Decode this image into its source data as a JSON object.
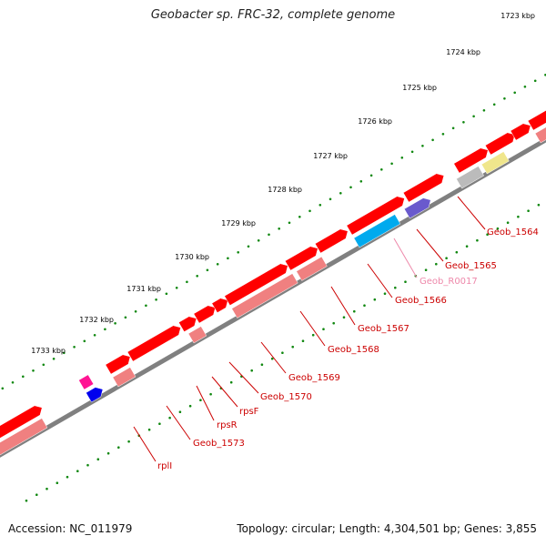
{
  "title": "Geobacter sp. FRC-32, complete genome",
  "footer": {
    "accession": "Accession: NC_011979",
    "summary": "Topology: circular; Length: 4,304,501 bp; Genes: 3,855"
  },
  "colors": {
    "backbone": "#808080",
    "tick": "#118811",
    "cds": "#ff0000",
    "cds_light": "#f08080",
    "gene_label": "#cc0000",
    "rna_label": "#ee88aa",
    "magenta": "#ff1493",
    "blue": "#0000ee",
    "cyan": "#00aaee",
    "purple": "#6a5acd",
    "gray": "#bbbbbb",
    "yellow": "#f0e68c"
  },
  "scale_ticks": [
    {
      "label": "1723 kbp"
    },
    {
      "label": "1724 kbp"
    },
    {
      "label": "1725 kbp"
    },
    {
      "label": "1726 kbp"
    },
    {
      "label": "1727 kbp"
    },
    {
      "label": "1728 kbp"
    },
    {
      "label": "1729 kbp"
    },
    {
      "label": "1730 kbp"
    },
    {
      "label": "1731 kbp"
    },
    {
      "label": "1732 kbp"
    },
    {
      "label": "1733 kbp"
    }
  ],
  "gene_labels": [
    {
      "label": "Geob_1564",
      "kind": "cds"
    },
    {
      "label": "Geob_1565",
      "kind": "cds"
    },
    {
      "label": "Geob_R0017",
      "kind": "rna"
    },
    {
      "label": "Geob_1566",
      "kind": "cds"
    },
    {
      "label": "Geob_1567",
      "kind": "cds"
    },
    {
      "label": "Geob_1568",
      "kind": "cds"
    },
    {
      "label": "Geob_1569",
      "kind": "cds"
    },
    {
      "label": "Geob_1570",
      "kind": "cds"
    },
    {
      "label": "rpsF",
      "kind": "cds"
    },
    {
      "label": "rpsR",
      "kind": "cds"
    },
    {
      "label": "Geob_1573",
      "kind": "cds"
    },
    {
      "label": "rplI",
      "kind": "cds"
    }
  ]
}
